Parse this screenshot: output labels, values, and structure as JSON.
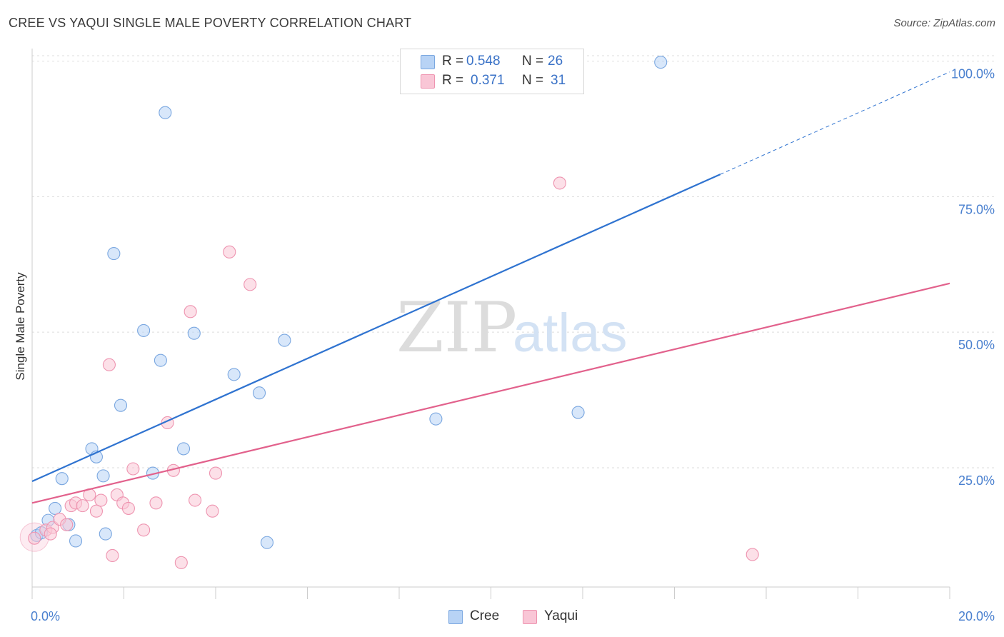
{
  "title": "CREE VS YAQUI SINGLE MALE POVERTY CORRELATION CHART",
  "source": "Source: ZipAtlas.com",
  "watermark": {
    "zip": "ZIP",
    "atlas": "atlas"
  },
  "legend": {
    "rows": [
      {
        "r_label": "R =",
        "r_value": "0.548",
        "n_label": "N =",
        "n_value": "26"
      },
      {
        "r_label": "R =",
        "r_value": "0.371",
        "n_label": "N =",
        "n_value": "31"
      }
    ]
  },
  "bottom_legend": {
    "cree": "Cree",
    "yaqui": "Yaqui"
  },
  "colors": {
    "cree_fill": "#b8d3f5",
    "cree_stroke": "#7aa7e0",
    "cree_line": "#2f73d0",
    "yaqui_fill": "#f9c6d6",
    "yaqui_stroke": "#ee94b0",
    "yaqui_line": "#e2618c",
    "tick_label": "#4a80cf",
    "grid": "#dedede"
  },
  "chart_data": {
    "type": "scatter",
    "title": "CREE VS YAQUI SINGLE MALE POVERTY CORRELATION CHART",
    "xlabel": "",
    "ylabel": "Single Male Poverty",
    "xlim": [
      0,
      20
    ],
    "ylim": [
      3,
      101
    ],
    "x_tick_labels": [
      {
        "value": 0,
        "label": "0.0%"
      },
      {
        "value": 20,
        "label": "20.0%"
      }
    ],
    "y_tick_labels": [
      {
        "value": 25,
        "label": "25.0%"
      },
      {
        "value": 50,
        "label": "50.0%"
      },
      {
        "value": 75,
        "label": "75.0%"
      },
      {
        "value": 100,
        "label": "100.0%"
      }
    ],
    "series": [
      {
        "name": "Cree",
        "R": 0.548,
        "N": 26,
        "points": [
          {
            "x": 0.1,
            "y": 12.5
          },
          {
            "x": 0.2,
            "y": 13.0
          },
          {
            "x": 0.35,
            "y": 15.3
          },
          {
            "x": 0.5,
            "y": 17.5
          },
          {
            "x": 0.65,
            "y": 23.0
          },
          {
            "x": 0.8,
            "y": 14.5
          },
          {
            "x": 0.95,
            "y": 11.5
          },
          {
            "x": 1.3,
            "y": 28.5
          },
          {
            "x": 1.4,
            "y": 27.0
          },
          {
            "x": 1.55,
            "y": 23.5
          },
          {
            "x": 1.6,
            "y": 12.8
          },
          {
            "x": 1.78,
            "y": 64.5
          },
          {
            "x": 1.93,
            "y": 36.5
          },
          {
            "x": 2.43,
            "y": 50.3
          },
          {
            "x": 2.63,
            "y": 24.0
          },
          {
            "x": 2.8,
            "y": 44.8
          },
          {
            "x": 2.9,
            "y": 90.5
          },
          {
            "x": 3.3,
            "y": 28.5
          },
          {
            "x": 3.53,
            "y": 49.8
          },
          {
            "x": 4.4,
            "y": 42.2
          },
          {
            "x": 4.95,
            "y": 38.8
          },
          {
            "x": 5.12,
            "y": 11.2
          },
          {
            "x": 5.5,
            "y": 48.5
          },
          {
            "x": 8.8,
            "y": 34.0
          },
          {
            "x": 11.9,
            "y": 35.2
          },
          {
            "x": 13.7,
            "y": 99.8
          }
        ],
        "trend": {
          "x0": 0,
          "y0": 22.5,
          "x1": 20,
          "y1": 98.0,
          "solid_until_x": 15.0
        }
      },
      {
        "name": "Yaqui",
        "R": 0.371,
        "N": 31,
        "points": [
          {
            "x": 0.05,
            "y": 12.0
          },
          {
            "x": 0.3,
            "y": 13.5
          },
          {
            "x": 0.45,
            "y": 14.0
          },
          {
            "x": 0.6,
            "y": 15.5
          },
          {
            "x": 0.75,
            "y": 14.5
          },
          {
            "x": 0.85,
            "y": 18.0
          },
          {
            "x": 0.95,
            "y": 18.5
          },
          {
            "x": 1.1,
            "y": 18.0
          },
          {
            "x": 1.25,
            "y": 20.0
          },
          {
            "x": 1.4,
            "y": 17.0
          },
          {
            "x": 1.5,
            "y": 19.0
          },
          {
            "x": 1.68,
            "y": 44.0
          },
          {
            "x": 1.75,
            "y": 8.8
          },
          {
            "x": 1.85,
            "y": 20.0
          },
          {
            "x": 1.98,
            "y": 18.5
          },
          {
            "x": 2.1,
            "y": 17.5
          },
          {
            "x": 2.2,
            "y": 24.8
          },
          {
            "x": 2.43,
            "y": 13.5
          },
          {
            "x": 2.7,
            "y": 18.5
          },
          {
            "x": 2.95,
            "y": 33.3
          },
          {
            "x": 3.08,
            "y": 24.5
          },
          {
            "x": 3.25,
            "y": 7.5
          },
          {
            "x": 3.45,
            "y": 53.8
          },
          {
            "x": 3.55,
            "y": 19.0
          },
          {
            "x": 3.93,
            "y": 17.0
          },
          {
            "x": 4.0,
            "y": 24.0
          },
          {
            "x": 4.3,
            "y": 64.8
          },
          {
            "x": 4.75,
            "y": 58.8
          },
          {
            "x": 11.5,
            "y": 77.5
          },
          {
            "x": 15.7,
            "y": 9.0
          },
          {
            "x": 0.4,
            "y": 12.8
          }
        ],
        "trend": {
          "x0": 0,
          "y0": 18.5,
          "x1": 20,
          "y1": 59.0
        }
      }
    ]
  }
}
